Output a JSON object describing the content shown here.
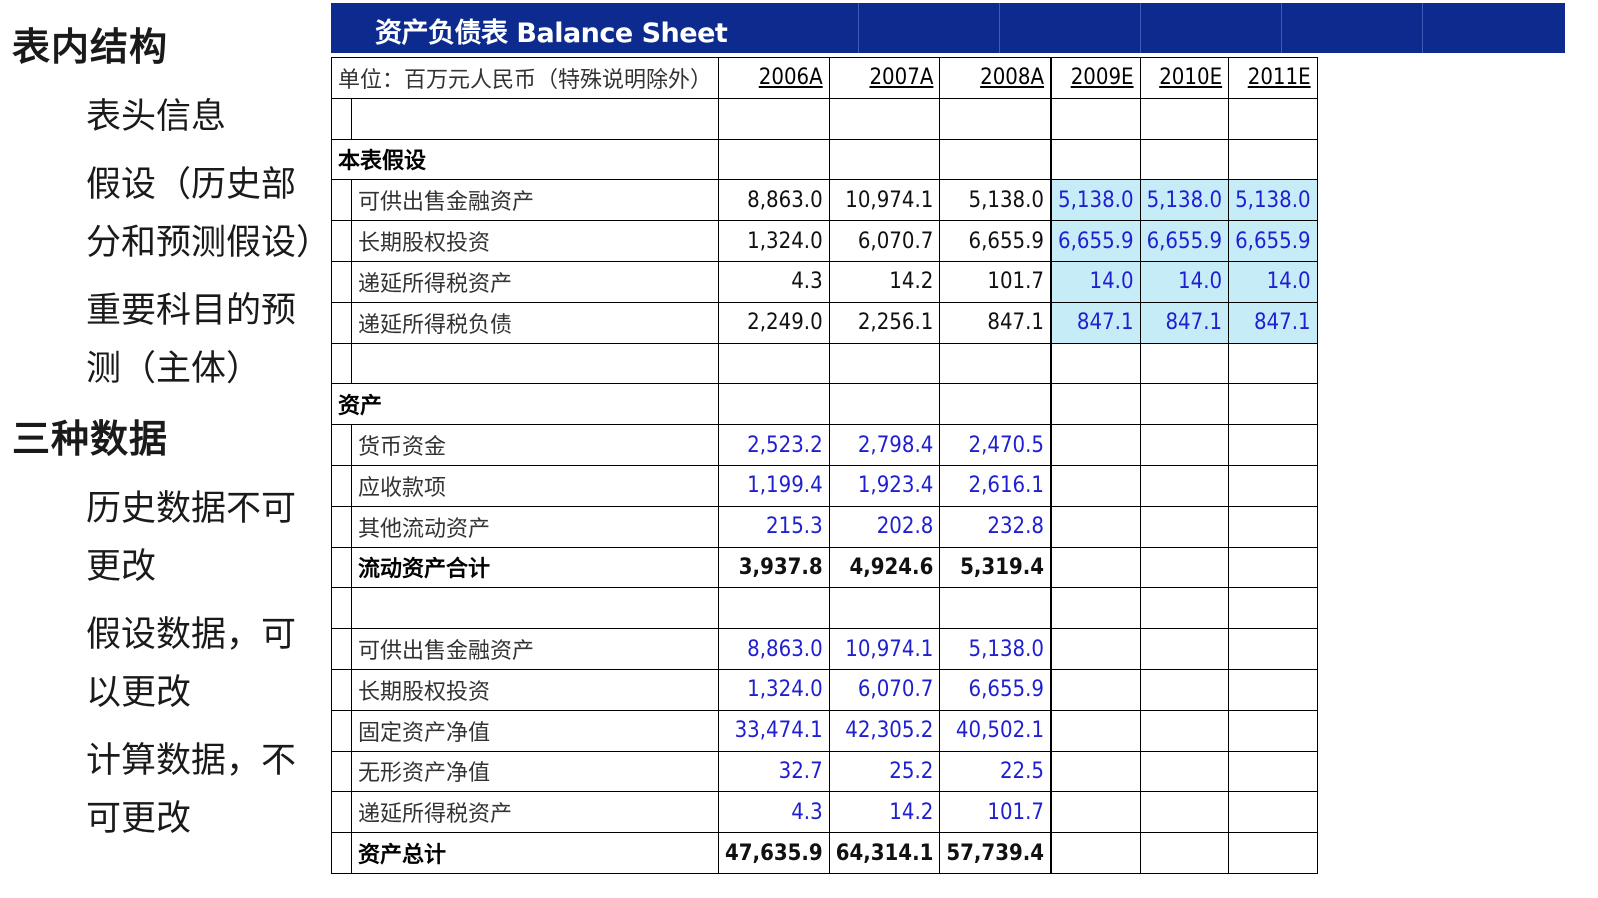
{
  "outline": {
    "h1_structure": "表内结构",
    "item_header": "表头信息",
    "item_assume_1": "假设（历史部",
    "item_assume_2": "分和预测假设）",
    "item_main_1": "重要科目的预",
    "item_main_2": "测（主体）",
    "h1_data": "三种数据",
    "item_hist_1": "历史数据不可",
    "item_hist_2": "更改",
    "item_assum_1": "假设数据，可",
    "item_assum_2": "以更改",
    "item_calc_1": "计算数据，不",
    "item_calc_2": "可更改"
  },
  "sheet": {
    "title": "资产负债表 Balance Sheet",
    "unit": "单位：百万元人民币（特殊说明除外）",
    "years": [
      "2006A",
      "2007A",
      "2008A",
      "2009E",
      "2010E",
      "2011E"
    ],
    "section_assumptions": "本表假设",
    "assumptions": [
      {
        "label": "可供出售金融资产",
        "values": [
          "8,863.0",
          "10,974.1",
          "5,138.0",
          "5,138.0",
          "5,138.0",
          "5,138.0"
        ]
      },
      {
        "label": "长期股权投资",
        "values": [
          "1,324.0",
          "6,070.7",
          "6,655.9",
          "6,655.9",
          "6,655.9",
          "6,655.9"
        ]
      },
      {
        "label": "递延所得税资产",
        "values": [
          "4.3",
          "14.2",
          "101.7",
          "14.0",
          "14.0",
          "14.0"
        ]
      },
      {
        "label": "递延所得税负债",
        "values": [
          "2,249.0",
          "2,256.1",
          "847.1",
          "847.1",
          "847.1",
          "847.1"
        ]
      }
    ],
    "section_assets": "资产",
    "current_assets": [
      {
        "label": "货币资金",
        "values": [
          "2,523.2",
          "2,798.4",
          "2,470.5"
        ]
      },
      {
        "label": "应收款项",
        "values": [
          "1,199.4",
          "1,923.4",
          "2,616.1"
        ]
      },
      {
        "label": "其他流动资产",
        "values": [
          "215.3",
          "202.8",
          "232.8"
        ]
      }
    ],
    "current_total": {
      "label": "流动资产合计",
      "values": [
        "3,937.8",
        "4,924.6",
        "5,319.4"
      ]
    },
    "noncurrent_assets": [
      {
        "label": "可供出售金融资产",
        "values": [
          "8,863.0",
          "10,974.1",
          "5,138.0"
        ]
      },
      {
        "label": "长期股权投资",
        "values": [
          "1,324.0",
          "6,070.7",
          "6,655.9"
        ]
      },
      {
        "label": "固定资产净值",
        "values": [
          "33,474.1",
          "42,305.2",
          "40,502.1"
        ]
      },
      {
        "label": "无形资产净值",
        "values": [
          "32.7",
          "25.2",
          "22.5"
        ]
      },
      {
        "label": "递延所得税资产",
        "values": [
          "4.3",
          "14.2",
          "101.7"
        ]
      }
    ],
    "assets_total": {
      "label": "资产总计",
      "values": [
        "47,635.9",
        "64,314.1",
        "57,739.4"
      ]
    }
  },
  "colors": {
    "title_bg": "#0d2b8e",
    "forecast_bg": "#c6ecf7",
    "input_text": "#1f1fd1"
  }
}
